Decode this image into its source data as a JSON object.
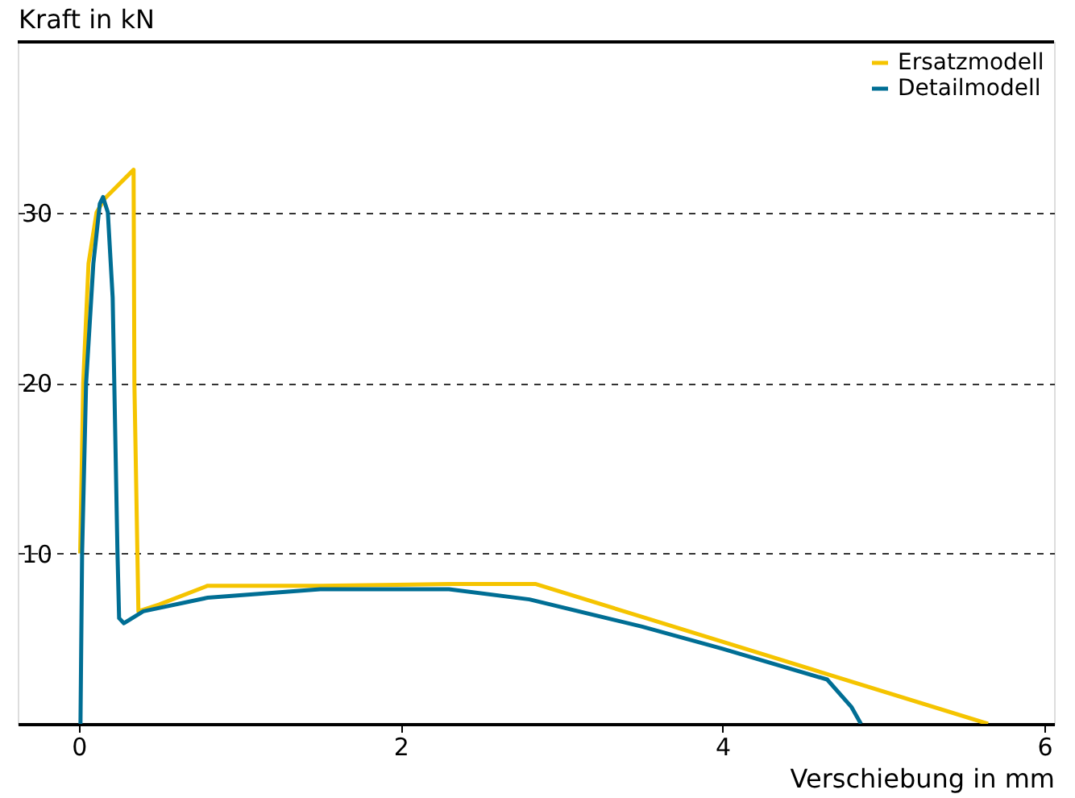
{
  "chart_data": {
    "type": "line",
    "xlabel": "Verschiebung in mm",
    "ylabel": "Kraft in kN",
    "xlim": [
      -0.38,
      6.06
    ],
    "xticks": [
      0,
      2,
      4,
      6
    ],
    "ylim": [
      0,
      40
    ],
    "yticks": [
      10,
      20,
      30
    ],
    "grid": "y",
    "legend": "top right",
    "line_style": "solid",
    "marker": "none",
    "series": [
      {
        "name": "Ersatzmodell",
        "color": "#f5c400",
        "x": [
          0.008,
          0.027,
          0.06,
          0.11,
          0.16,
          0.34,
          0.345,
          0.37,
          0.5,
          0.8,
          1.5,
          2.3,
          2.84,
          5.65
        ],
        "values": [
          10,
          20,
          27,
          30,
          30.8,
          32.5,
          20,
          6.6,
          7.0,
          8.1,
          8.1,
          8.2,
          8.2,
          0
        ]
      },
      {
        "name": "Detailmodell",
        "color": "#006e94",
        "x": [
          0.01,
          0.02,
          0.045,
          0.09,
          0.13,
          0.15,
          0.18,
          0.21,
          0.24,
          0.25,
          0.28,
          0.4,
          0.8,
          1.5,
          2.3,
          2.8,
          3.5,
          4.0,
          4.65,
          4.8,
          4.86
        ],
        "values": [
          0,
          10,
          20,
          27,
          30.5,
          30.9,
          30,
          25,
          10,
          6.2,
          5.9,
          6.6,
          7.4,
          7.9,
          7.9,
          7.3,
          5.7,
          4.4,
          2.6,
          1.0,
          0
        ]
      }
    ]
  }
}
